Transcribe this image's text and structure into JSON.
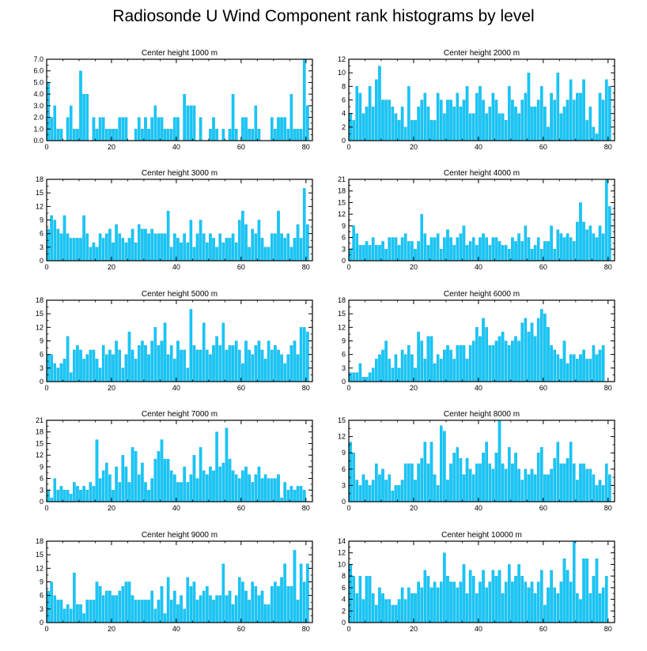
{
  "title": "Radiosonde U Wind Component rank histograms by level",
  "colors": {
    "bar": "#14c8fa",
    "bar_edge": "#0a9ccc",
    "axis": "#000000"
  },
  "chart_data": [
    {
      "type": "bar",
      "title": "Center height 1000 m",
      "x_range": [
        0,
        82
      ],
      "x_ticks": [
        0,
        20,
        40,
        60,
        80
      ],
      "ylim": [
        0,
        7
      ],
      "y_ticks": [
        0,
        1,
        2,
        3,
        4,
        5,
        6,
        7
      ],
      "y_tick_labels": [
        "0.0",
        "1.0",
        "2.0",
        "3.0",
        "4.0",
        "5.0",
        "6.0",
        "7.0"
      ],
      "values": [
        5,
        2,
        3,
        1,
        1,
        0,
        2,
        3,
        1,
        1,
        6,
        4,
        4,
        0,
        2,
        1,
        2,
        2,
        1,
        1,
        1,
        1,
        2,
        2,
        2,
        0,
        0,
        1,
        2,
        1,
        2,
        1,
        2,
        3,
        2,
        2,
        1,
        1,
        1,
        2,
        2,
        0,
        4,
        3,
        3,
        3,
        0,
        2,
        0,
        0,
        1,
        2,
        1,
        0,
        1,
        0,
        1,
        4,
        1,
        0,
        2,
        2,
        1,
        1,
        3,
        1,
        0,
        0,
        0,
        2,
        1,
        2,
        2,
        2,
        1,
        4,
        1,
        1,
        1,
        7,
        3,
        0
      ]
    },
    {
      "type": "bar",
      "title": "Center height 2000 m",
      "x_range": [
        0,
        82
      ],
      "x_ticks": [
        0,
        20,
        40,
        60,
        80
      ],
      "ylim": [
        0,
        12
      ],
      "y_ticks": [
        0,
        2,
        4,
        6,
        8,
        10,
        12
      ],
      "y_tick_labels": [
        "0",
        "2",
        "4",
        "6",
        "8",
        "10",
        "12"
      ],
      "values": [
        4,
        3,
        8,
        7,
        4,
        5,
        8,
        5,
        9,
        11,
        6,
        6,
        6,
        5,
        4,
        3,
        5,
        2,
        8,
        3,
        3,
        5,
        6,
        7,
        5,
        3,
        3,
        7,
        6,
        4,
        6,
        6,
        5,
        7,
        5,
        6,
        8,
        4,
        4,
        7,
        8,
        6,
        4,
        5,
        7,
        6,
        4,
        4,
        3,
        8,
        6,
        5,
        4,
        6,
        7,
        10,
        5,
        5,
        6,
        8,
        5,
        2,
        7,
        6,
        10,
        4,
        5,
        6,
        9,
        6,
        7,
        7,
        9,
        3,
        5,
        2,
        1,
        7,
        6,
        9,
        8,
        0
      ]
    },
    {
      "type": "bar",
      "title": "Center height 3000 m",
      "x_range": [
        0,
        82
      ],
      "x_ticks": [
        0,
        20,
        40,
        60,
        80
      ],
      "ylim": [
        0,
        18
      ],
      "y_ticks": [
        0,
        3,
        6,
        9,
        12,
        15,
        18
      ],
      "y_tick_labels": [
        "0",
        "3",
        "6",
        "9",
        "12",
        "15",
        "18"
      ],
      "values": [
        7,
        10,
        9,
        7,
        6,
        10,
        6,
        5,
        5,
        5,
        5,
        10,
        6,
        3,
        4,
        3,
        6,
        5,
        6,
        7,
        4,
        8,
        6,
        5,
        4,
        5,
        7,
        4,
        8,
        7,
        7,
        6,
        7,
        6,
        6,
        6,
        6,
        11,
        3,
        6,
        5,
        4,
        6,
        4,
        9,
        3,
        6,
        9,
        6,
        4,
        6,
        5,
        3,
        6,
        4,
        5,
        5,
        6,
        4,
        9,
        11,
        8,
        3,
        7,
        6,
        9,
        5,
        3,
        3,
        6,
        6,
        11,
        6,
        5,
        6,
        3,
        5,
        8,
        5,
        16,
        8,
        0
      ]
    },
    {
      "type": "bar",
      "title": "Center height 4000 m",
      "x_range": [
        0,
        82
      ],
      "x_ticks": [
        0,
        20,
        40,
        60,
        80
      ],
      "ylim": [
        0,
        21
      ],
      "y_ticks": [
        0,
        3,
        6,
        9,
        12,
        15,
        18,
        21
      ],
      "y_tick_labels": [
        "0",
        "3",
        "6",
        "9",
        "12",
        "15",
        "18",
        "21"
      ],
      "values": [
        3,
        9,
        7,
        4,
        4,
        5,
        4,
        6,
        4,
        4,
        5,
        3,
        6,
        6,
        6,
        4,
        6,
        7,
        5,
        5,
        3,
        5,
        12,
        7,
        4,
        6,
        6,
        7,
        3,
        6,
        8,
        6,
        4,
        6,
        7,
        9,
        4,
        5,
        6,
        4,
        6,
        7,
        6,
        4,
        6,
        6,
        5,
        4,
        4,
        3,
        6,
        5,
        7,
        5,
        9,
        6,
        3,
        4,
        6,
        3,
        5,
        5,
        9,
        3,
        8,
        7,
        6,
        7,
        6,
        5,
        10,
        15,
        10,
        8,
        9,
        7,
        6,
        9,
        7,
        21,
        14,
        0
      ]
    },
    {
      "type": "bar",
      "title": "Center height 5000 m",
      "x_range": [
        0,
        82
      ],
      "x_ticks": [
        0,
        20,
        40,
        60,
        80
      ],
      "ylim": [
        0,
        18
      ],
      "y_ticks": [
        0,
        3,
        6,
        9,
        12,
        15,
        18
      ],
      "y_tick_labels": [
        "0",
        "3",
        "6",
        "9",
        "12",
        "15",
        "18"
      ],
      "values": [
        6,
        6,
        4,
        3,
        4,
        5,
        10,
        2,
        7,
        8,
        7,
        5,
        6,
        7,
        7,
        5,
        3,
        8,
        6,
        7,
        6,
        9,
        7,
        3,
        6,
        11,
        7,
        5,
        8,
        9,
        8,
        6,
        9,
        12,
        8,
        9,
        13,
        6,
        8,
        5,
        9,
        7,
        7,
        3,
        16,
        8,
        7,
        7,
        13,
        7,
        6,
        8,
        10,
        8,
        13,
        7,
        8,
        8,
        9,
        7,
        4,
        9,
        7,
        6,
        8,
        9,
        7,
        5,
        9,
        7,
        8,
        7,
        6,
        4,
        6,
        8,
        9,
        6,
        12,
        12,
        11,
        0
      ]
    },
    {
      "type": "bar",
      "title": "Center height 6000 m",
      "x_range": [
        0,
        82
      ],
      "x_ticks": [
        0,
        20,
        40,
        60,
        80
      ],
      "ylim": [
        0,
        18
      ],
      "y_ticks": [
        0,
        3,
        6,
        9,
        12,
        15,
        18
      ],
      "y_tick_labels": [
        "0",
        "3",
        "6",
        "9",
        "12",
        "15",
        "18"
      ],
      "values": [
        2,
        2,
        2,
        4,
        1,
        1,
        2,
        3,
        5,
        6,
        7,
        9,
        5,
        3,
        6,
        3,
        7,
        6,
        8,
        6,
        3,
        11,
        9,
        5,
        10,
        10,
        4,
        6,
        5,
        7,
        8,
        7,
        5,
        8,
        8,
        8,
        5,
        8,
        9,
        12,
        10,
        14,
        12,
        8,
        8,
        9,
        10,
        11,
        9,
        8,
        9,
        10,
        9,
        13,
        14,
        11,
        13,
        10,
        14,
        16,
        15,
        12,
        8,
        7,
        6,
        5,
        9,
        4,
        6,
        6,
        5,
        6,
        7,
        5,
        5,
        8,
        6,
        7,
        8,
        0,
        0,
        0
      ]
    },
    {
      "type": "bar",
      "title": "Center height 7000 m",
      "x_range": [
        0,
        82
      ],
      "x_ticks": [
        0,
        20,
        40,
        60,
        80
      ],
      "ylim": [
        0,
        21
      ],
      "y_ticks": [
        0,
        3,
        6,
        9,
        12,
        15,
        18,
        21
      ],
      "y_tick_labels": [
        "0",
        "3",
        "6",
        "9",
        "12",
        "15",
        "18",
        "21"
      ],
      "values": [
        3,
        1,
        6,
        3,
        4,
        3,
        3,
        2,
        5,
        4,
        3,
        4,
        3,
        5,
        4,
        16,
        6,
        8,
        10,
        7,
        3,
        9,
        5,
        12,
        9,
        5,
        14,
        13,
        7,
        10,
        5,
        3,
        6,
        11,
        13,
        16,
        11,
        11,
        8,
        7,
        5,
        5,
        9,
        5,
        7,
        12,
        6,
        14,
        8,
        7,
        9,
        8,
        18,
        9,
        10,
        19,
        11,
        8,
        7,
        6,
        8,
        9,
        7,
        5,
        7,
        9,
        6,
        7,
        6,
        6,
        6,
        7,
        1,
        5,
        3,
        4,
        3,
        4,
        4,
        3,
        0,
        0
      ]
    },
    {
      "type": "bar",
      "title": "Center height 8000 m",
      "x_range": [
        0,
        82
      ],
      "x_ticks": [
        0,
        20,
        40,
        60,
        80
      ],
      "ylim": [
        0,
        15
      ],
      "y_ticks": [
        0,
        3,
        6,
        9,
        12,
        15
      ],
      "y_tick_labels": [
        "0",
        "3",
        "6",
        "9",
        "12",
        "15"
      ],
      "values": [
        11,
        9,
        4,
        3,
        5,
        4,
        3,
        4,
        7,
        5,
        6,
        4,
        5,
        2,
        3,
        3,
        4,
        7,
        7,
        7,
        4,
        7,
        8,
        11,
        7,
        11,
        5,
        3,
        14,
        13,
        4,
        7,
        9,
        10,
        8,
        5,
        8,
        6,
        5,
        7,
        7,
        9,
        11,
        7,
        6,
        9,
        15,
        7,
        6,
        10,
        7,
        9,
        6,
        4,
        6,
        5,
        6,
        5,
        9,
        10,
        5,
        5,
        6,
        8,
        11,
        7,
        7,
        8,
        11,
        7,
        4,
        7,
        7,
        6,
        6,
        5,
        3,
        4,
        3,
        7,
        5,
        0
      ]
    },
    {
      "type": "bar",
      "title": "Center height 9000 m",
      "x_range": [
        0,
        82
      ],
      "x_ticks": [
        0,
        20,
        40,
        60,
        80
      ],
      "ylim": [
        0,
        18
      ],
      "y_ticks": [
        0,
        3,
        6,
        9,
        12,
        15,
        18
      ],
      "y_tick_labels": [
        "0",
        "3",
        "6",
        "9",
        "12",
        "15",
        "18"
      ],
      "values": [
        7,
        9,
        6,
        5,
        5,
        3,
        4,
        3,
        11,
        4,
        4,
        2,
        5,
        5,
        5,
        9,
        8,
        6,
        7,
        7,
        6,
        6,
        7,
        8,
        9,
        9,
        6,
        5,
        5,
        5,
        5,
        5,
        7,
        3,
        5,
        8,
        2,
        10,
        5,
        7,
        4,
        6,
        3,
        10,
        8,
        9,
        5,
        6,
        7,
        8,
        6,
        5,
        6,
        6,
        13,
        6,
        7,
        4,
        6,
        10,
        9,
        7,
        5,
        9,
        8,
        6,
        7,
        4,
        4,
        8,
        9,
        8,
        10,
        13,
        8,
        8,
        16,
        5,
        13,
        9,
        13,
        0
      ]
    },
    {
      "type": "bar",
      "title": "Center height 10000 m",
      "x_range": [
        0,
        82
      ],
      "x_ticks": [
        0,
        20,
        40,
        60,
        80
      ],
      "ylim": [
        0,
        14
      ],
      "y_ticks": [
        0,
        2,
        4,
        6,
        8,
        10,
        12,
        14
      ],
      "y_tick_labels": [
        "0",
        "2",
        "4",
        "6",
        "8",
        "10",
        "12",
        "14"
      ],
      "values": [
        10,
        8,
        5,
        8,
        4,
        8,
        8,
        5,
        3,
        6,
        5,
        4,
        4,
        3,
        3,
        4,
        6,
        4,
        6,
        5,
        5,
        7,
        6,
        9,
        8,
        6,
        7,
        6,
        7,
        12,
        8,
        7,
        7,
        6,
        7,
        10,
        5,
        9,
        8,
        5,
        7,
        9,
        6,
        7,
        9,
        8,
        9,
        5,
        7,
        10,
        7,
        8,
        10,
        8,
        7,
        6,
        7,
        5,
        7,
        9,
        3,
        6,
        9,
        6,
        5,
        7,
        11,
        9,
        7,
        14,
        5,
        4,
        11,
        11,
        5,
        8,
        11,
        5,
        6,
        8,
        0,
        0
      ]
    }
  ]
}
